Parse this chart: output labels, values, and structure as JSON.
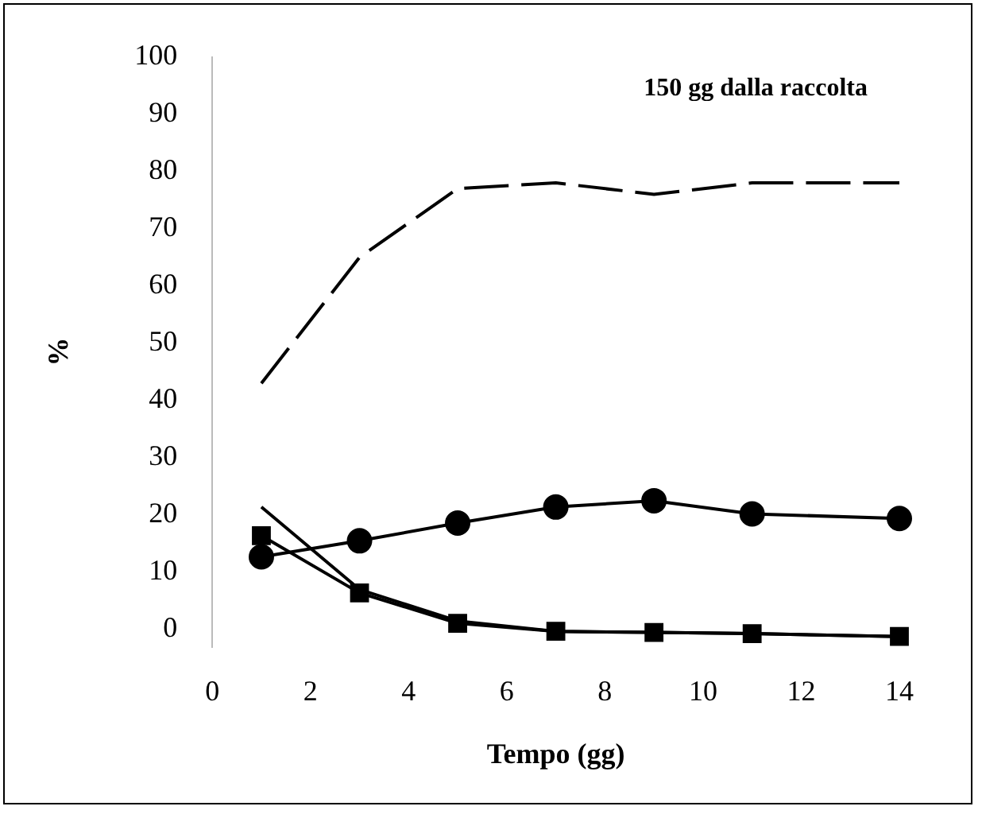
{
  "chart_data": {
    "type": "line",
    "title": "150 gg dalla raccolta",
    "xlabel": "Tempo (gg)",
    "ylabel": "%",
    "x": [
      1,
      3,
      5,
      7,
      9,
      11,
      14
    ],
    "series": [
      {
        "color": "#000000",
        "line_style": "dashed",
        "marker": "none",
        "values": [
          43,
          65,
          77,
          78,
          76,
          78,
          78
        ]
      },
      {
        "color": "#000000",
        "marker": "circle",
        "values": [
          12.7,
          15.5,
          18.6,
          21.4,
          22.5,
          20.2,
          19.4
        ]
      },
      {
        "color": "#000000",
        "marker": "square",
        "values": [
          16.4,
          6.4,
          1.1,
          -0.3,
          -0.5,
          -0.7,
          -1.2
        ]
      },
      {
        "color": "#000000",
        "marker": "none",
        "values": [
          21.4,
          7,
          1.5,
          -0.3,
          -0.5,
          -0.7,
          -1.2
        ]
      }
    ],
    "xlim": [
      0,
      14
    ],
    "xticks": [
      0,
      2,
      4,
      6,
      8,
      10,
      12,
      14
    ],
    "ylim": [
      -3,
      100
    ],
    "yticks": [
      0,
      10,
      20,
      30,
      40,
      50,
      60,
      70,
      80,
      90,
      100
    ],
    "grid": false,
    "legend": false
  }
}
